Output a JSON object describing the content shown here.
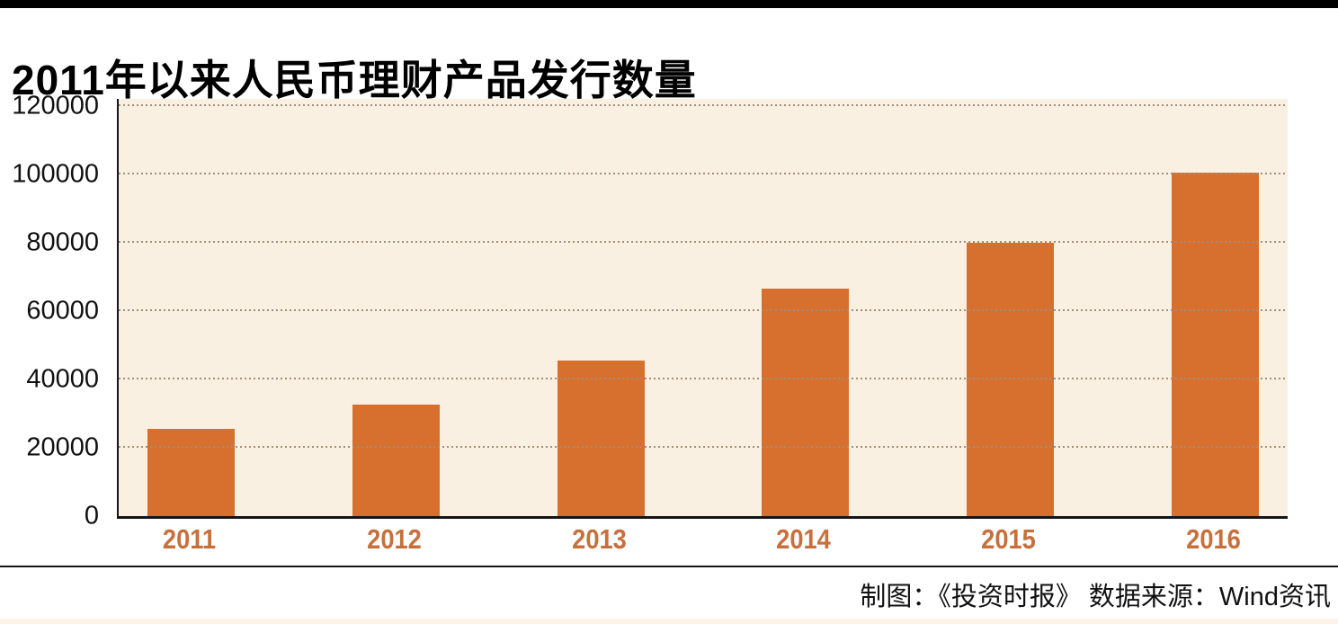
{
  "page": {
    "title": "2011年以来人民币理财产品发行数量",
    "credits": "制图：《投资时报》  数据来源：Wind资讯"
  },
  "colors": {
    "bar": "#d76f2e",
    "plot_background": "#faf0e2",
    "gridline": "#a08e7a",
    "x_tick_label": "#c8703c",
    "top_bar": "#000000",
    "divider": "#151515",
    "bottom_strip": "#fcf4e6"
  },
  "chart_data": {
    "type": "bar",
    "title": "2011年以来人民币理财产品发行数量",
    "categories": [
      "2011",
      "2012",
      "2013",
      "2014",
      "2015",
      "2016"
    ],
    "values": [
      25500,
      32500,
      45500,
      66500,
      80000,
      100500
    ],
    "xlabel": "",
    "ylabel": "",
    "ylim": [
      0,
      120000
    ],
    "yticks": [
      0,
      20000,
      40000,
      60000,
      80000,
      100000,
      120000
    ],
    "grid": "horizontal-dotted",
    "legend_position": "none",
    "bar_color": "#d76f2e",
    "source_note": "制图：《投资时报》  数据来源：Wind资讯"
  }
}
